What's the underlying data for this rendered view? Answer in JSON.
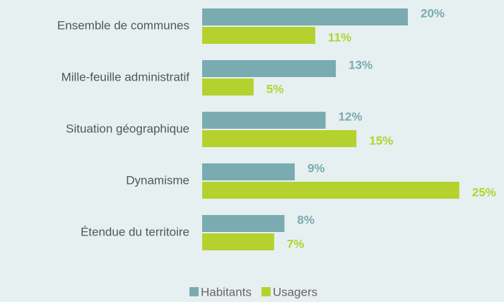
{
  "chart_data": {
    "type": "bar",
    "orientation": "horizontal",
    "categories": [
      "Ensemble de communes",
      "Mille-feuille administratif",
      "Situation géographique",
      "Dynamisme",
      "Étendue du territoire"
    ],
    "series": [
      {
        "name": "Habitants",
        "color": "#7aabb0",
        "values": [
          20,
          13,
          12,
          9,
          8
        ],
        "value_labels": [
          "20%",
          "13%",
          "12%",
          "9%",
          "8%"
        ]
      },
      {
        "name": "Usagers",
        "color": "#b5d12e",
        "values": [
          11,
          5,
          15,
          25,
          7
        ],
        "value_labels": [
          "11%",
          "5%",
          "15%",
          "25%",
          "7%"
        ]
      }
    ],
    "legend": "bottom"
  }
}
